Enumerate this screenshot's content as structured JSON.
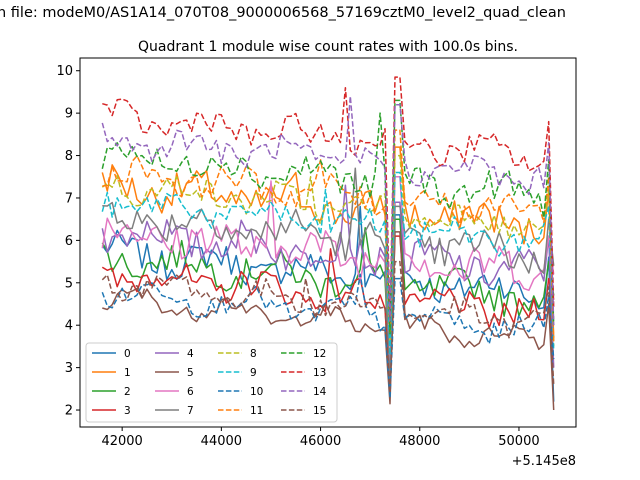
{
  "chart_data": {
    "type": "line",
    "suptitle": "n file: modeM0/AS1A14_070T08_9000006568_57169cztM0_level2_quad_clean",
    "title": "Quadrant 1 module wise count rates with 100.0s bins.",
    "xlabel": "",
    "ylabel": "",
    "x_offset_label": "+5.145e8",
    "x_range": [
      41600,
      50700
    ],
    "xlim": [
      41150,
      51150
    ],
    "ylim": [
      1.6,
      10.3
    ],
    "xticks": [
      42000,
      44000,
      46000,
      48000,
      50000
    ],
    "xtick_labels": [
      "42000",
      "44000",
      "46000",
      "48000",
      "50000"
    ],
    "yticks": [
      2,
      3,
      4,
      5,
      6,
      7,
      8,
      9,
      10
    ],
    "ytick_labels": [
      "2",
      "3",
      "4",
      "5",
      "6",
      "7",
      "8",
      "9",
      "10"
    ],
    "grid": false,
    "legend_position": "lower-left",
    "legend_ncol": 4,
    "spike_x": [
      47400,
      47600
    ],
    "series": [
      {
        "name": "0",
        "color": "#1f77b4",
        "dash": "solid",
        "base": 5.3,
        "noise": 0.35,
        "dip": 2.7,
        "peak": 6.6,
        "end": 2.2,
        "peakx": 46800,
        "peakv": 6.8
      },
      {
        "name": "1",
        "color": "#ff7f0e",
        "dash": "solid",
        "base": 6.9,
        "noise": 0.4,
        "dip": 3.8,
        "peak": 8.2,
        "end": 3.7,
        "peakx": 45500,
        "peakv": 7.6
      },
      {
        "name": "2",
        "color": "#2ca02c",
        "dash": "solid",
        "base": 5.2,
        "noise": 0.35,
        "dip": 2.6,
        "peak": 6.5,
        "end": 4.7,
        "peakx": 46900,
        "peakv": 6.3
      },
      {
        "name": "3",
        "color": "#d62728",
        "dash": "solid",
        "base": 4.8,
        "noise": 0.35,
        "dip": 2.5,
        "peak": 6.1,
        "end": 4.6,
        "peakx": 46200,
        "peakv": 5.8
      },
      {
        "name": "4",
        "color": "#9467bd",
        "dash": "solid",
        "base": 5.8,
        "noise": 0.4,
        "dip": 2.6,
        "peak": 6.9,
        "end": 3.0,
        "peakx": 46500,
        "peakv": 7.3
      },
      {
        "name": "5",
        "color": "#8c564b",
        "dash": "solid",
        "base": 4.2,
        "noise": 0.2,
        "dip": 2.15,
        "peak": 6.2,
        "end": 2.0,
        "peakx": 44000,
        "peakv": 4.6
      },
      {
        "name": "6",
        "color": "#e377c2",
        "dash": "solid",
        "base": 5.8,
        "noise": 0.45,
        "dip": 2.9,
        "peak": 7.5,
        "end": 5.2,
        "peakx": 45000,
        "peakv": 7.4
      },
      {
        "name": "7",
        "color": "#7f7f7f",
        "dash": "solid",
        "base": 6.2,
        "noise": 0.4,
        "dip": 2.6,
        "peak": 6.8,
        "end": 5.4,
        "peakx": 46700,
        "peakv": 7.7
      },
      {
        "name": "8",
        "color": "#bcbd22",
        "dash": "dashed",
        "base": 6.9,
        "noise": 0.3,
        "dip": 3.6,
        "peak": 8.0,
        "end": 3.5,
        "peakx": 45800,
        "peakv": 7.5
      },
      {
        "name": "9",
        "color": "#17becf",
        "dash": "dashed",
        "base": 6.5,
        "noise": 0.3,
        "dip": 3.3,
        "peak": 7.6,
        "end": 3.4,
        "peakx": 46100,
        "peakv": 7.2
      },
      {
        "name": "10",
        "color": "#1f77b4",
        "dash": "dashed",
        "base": 4.4,
        "noise": 0.25,
        "dip": 2.3,
        "peak": 5.1,
        "end": 3.2,
        "peakx": 46800,
        "peakv": 5.2
      },
      {
        "name": "11",
        "color": "#ff7f0e",
        "dash": "dashed",
        "base": 7.2,
        "noise": 0.3,
        "dip": 3.9,
        "peak": 8.6,
        "end": 3.6,
        "peakx": 46000,
        "peakv": 7.9
      },
      {
        "name": "12",
        "color": "#2ca02c",
        "dash": "dashed",
        "base": 7.6,
        "noise": 0.35,
        "dip": 3.8,
        "peak": 9.3,
        "end": 4.0,
        "peakx": 47200,
        "peakv": 9.0
      },
      {
        "name": "13",
        "color": "#d62728",
        "dash": "dashed",
        "base": 8.5,
        "noise": 0.3,
        "dip": 4.2,
        "peak": 9.85,
        "end": 4.4,
        "peakx": 46500,
        "peakv": 9.6
      },
      {
        "name": "14",
        "color": "#9467bd",
        "dash": "dashed",
        "base": 8.0,
        "noise": 0.3,
        "dip": 4.1,
        "peak": 9.2,
        "end": 4.0,
        "peakx": 46600,
        "peakv": 9.4
      },
      {
        "name": "15",
        "color": "#8c564b",
        "dash": "dashed",
        "base": 4.6,
        "noise": 0.25,
        "dip": 2.4,
        "peak": 5.5,
        "end": 2.6,
        "peakx": 45700,
        "peakv": 5.1
      }
    ]
  }
}
